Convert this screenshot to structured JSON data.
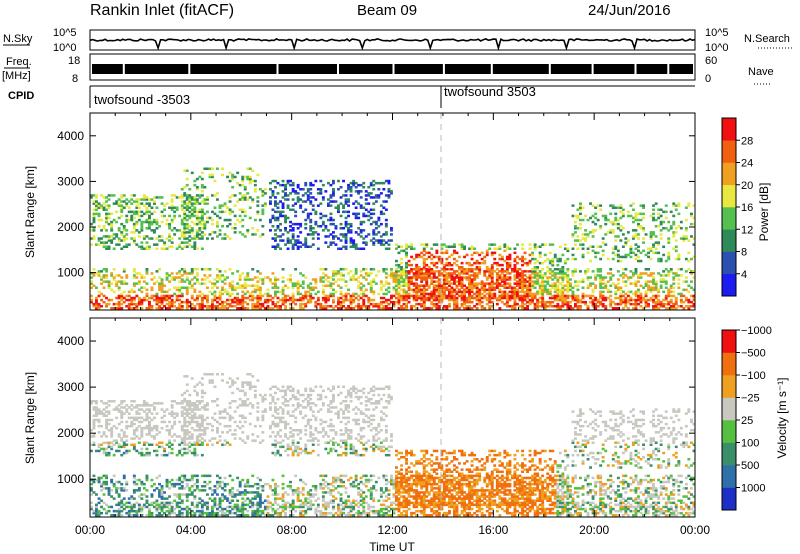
{
  "header": {
    "station": "Rankin Inlet (fitACF)",
    "beam": "Beam 09",
    "date": "24/Jun/2016"
  },
  "strips": {
    "nsky": {
      "label": "N.Sky",
      "tick_top": "10^5",
      "tick_bottom": "10^0"
    },
    "nsearch": {
      "label": "N.Search",
      "tick_top": "10^5",
      "tick_bottom": "10^0"
    },
    "freq": {
      "label_line1": "Freq.",
      "label_line2": "[MHz]",
      "tick_top": "18",
      "tick_bottom": "8"
    },
    "nave": {
      "label": "Nave",
      "tick_top": "60",
      "tick_bottom": "0"
    },
    "cpid": {
      "label": "CPID",
      "segments": [
        "twofsound -3503",
        "twofsound 3503"
      ],
      "switch_time_hours": 14
    }
  },
  "chart_data": [
    {
      "type": "heatmap",
      "title": "",
      "xlabel": "",
      "ylabel": "Slant Range [km]",
      "x_range_hours": [
        0,
        24
      ],
      "ylim": [
        180,
        4500
      ],
      "yticks": [
        "1000",
        "2000",
        "3000",
        "4000"
      ],
      "colorbar": {
        "label": "Power [dB]",
        "ticks": [
          "4",
          "8",
          "12",
          "16",
          "20",
          "24",
          "28"
        ],
        "colors": [
          "#1c1cf0",
          "#2a50b0",
          "#2f8a5a",
          "#55c050",
          "#e8e840",
          "#f0a020",
          "#f06010",
          "#f01010"
        ]
      }
    },
    {
      "type": "heatmap",
      "title": "",
      "xlabel": "Time UT",
      "ylabel": "Slant Range [km]",
      "x_range_hours": [
        0,
        24
      ],
      "xticks": [
        "00:00",
        "04:00",
        "08:00",
        "12:00",
        "16:00",
        "20:00",
        "00:00"
      ],
      "ylim": [
        180,
        4500
      ],
      "yticks": [
        "1000",
        "2000",
        "3000",
        "4000"
      ],
      "colorbar": {
        "label": "Velocity [m s⁻¹]",
        "ticks": [
          "1000",
          "500",
          "100",
          "25",
          "−25",
          "−100",
          "−500",
          "−1000"
        ],
        "colors": [
          "#1c30c8",
          "#2f70a8",
          "#3a8f6a",
          "#55c040",
          "#c8c8c0",
          "#f0a020",
          "#f07010",
          "#f01010"
        ]
      }
    }
  ]
}
